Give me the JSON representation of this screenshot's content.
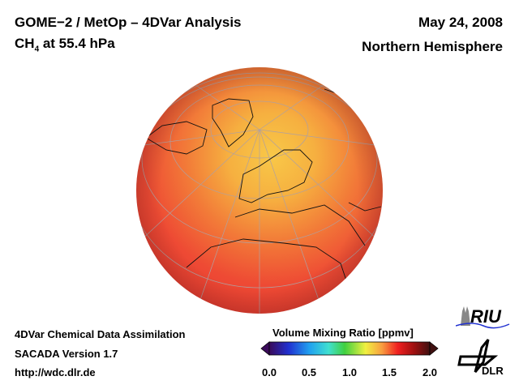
{
  "header": {
    "title": "GOME−2 / MetOp – 4DVar Analysis",
    "species": "CH",
    "species_sub": "4",
    "level": " at 55.4 hPa",
    "date": "May 24, 2008",
    "region": "Northern Hemisphere"
  },
  "footer": {
    "line1": "4DVar Chemical Data Assimilation",
    "line2": "SACADA Version 1.7",
    "line3": "http://wdc.dlr.de"
  },
  "colorbar": {
    "title": "Volume Mixing Ratio [ppmv]",
    "ticks": [
      "0.0",
      "0.5",
      "1.0",
      "1.5",
      "2.0"
    ],
    "range": [
      0.0,
      2.0
    ],
    "colors": [
      "#3a0a5a",
      "#2030d0",
      "#20a0f0",
      "#40e0d0",
      "#40d040",
      "#f0f040",
      "#f8a040",
      "#f02020",
      "#a01010",
      "#401010"
    ]
  },
  "logos": {
    "riu": "RIU",
    "dlr": "DLR"
  }
}
